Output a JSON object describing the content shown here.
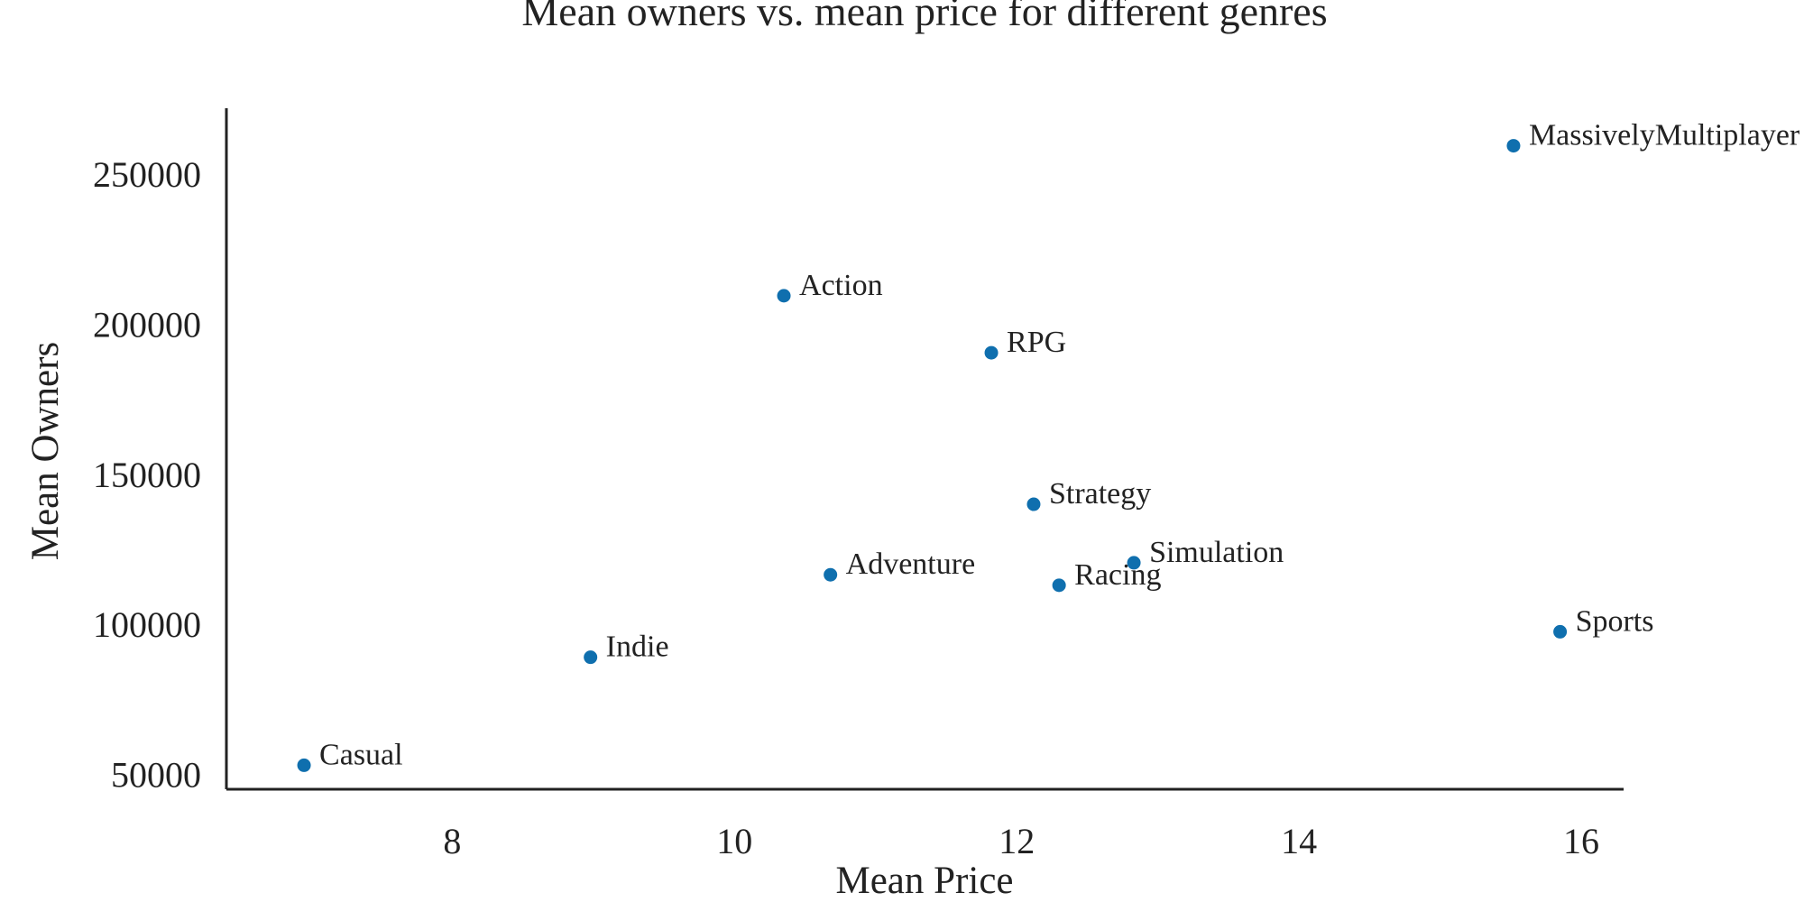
{
  "chart_data": {
    "type": "scatter",
    "title": "Mean owners vs. mean price for different genres",
    "xlabel": "Mean Price",
    "ylabel": "Mean Owners",
    "xlim": [
      6.4,
      16.3
    ],
    "ylim": [
      45000,
      272000
    ],
    "x_ticks": [
      8,
      10,
      12,
      14,
      16
    ],
    "y_ticks": [
      50000,
      100000,
      150000,
      200000,
      250000
    ],
    "grid": false,
    "legend": "none",
    "marker_color": "#0f6fae",
    "points": [
      {
        "label": "MassivelyMultiplayer",
        "x": 15.52,
        "y": 259500
      },
      {
        "label": "Action",
        "x": 10.35,
        "y": 209500
      },
      {
        "label": "RPG",
        "x": 11.82,
        "y": 190500
      },
      {
        "label": "Strategy",
        "x": 12.12,
        "y": 140000
      },
      {
        "label": "Simulation",
        "x": 12.83,
        "y": 120500
      },
      {
        "label": "Adventure",
        "x": 10.68,
        "y": 116500
      },
      {
        "label": "Racing",
        "x": 12.3,
        "y": 113000
      },
      {
        "label": "Sports",
        "x": 15.85,
        "y": 97500
      },
      {
        "label": "Indie",
        "x": 8.98,
        "y": 89000
      },
      {
        "label": "Casual",
        "x": 6.95,
        "y": 53000
      }
    ]
  }
}
